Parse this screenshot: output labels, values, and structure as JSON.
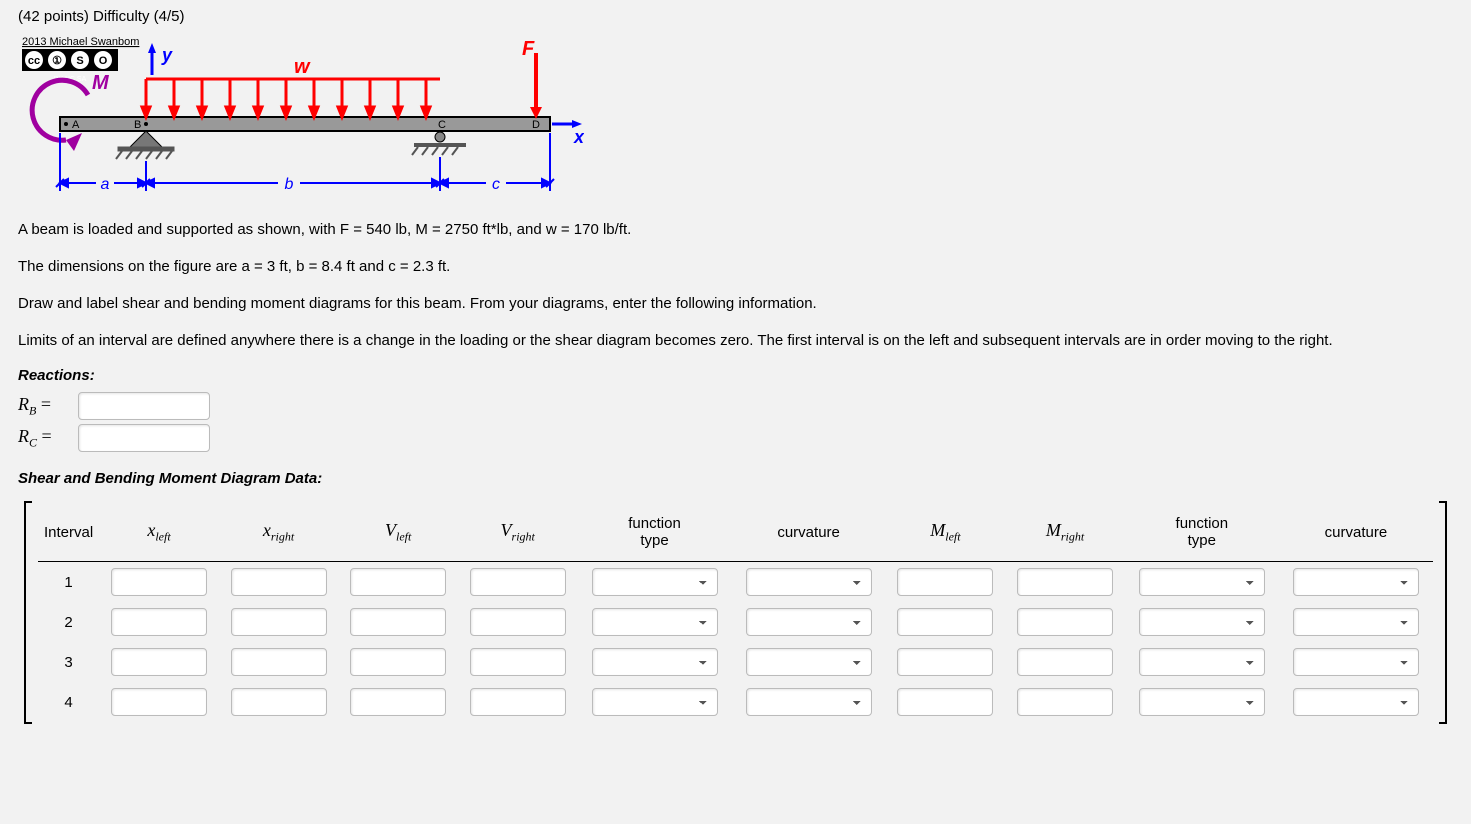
{
  "header": {
    "points": "(42 points)",
    "difficulty": "Difficulty (4/5)"
  },
  "figure": {
    "credit": "2013 Michael Swanbom",
    "cc_labels": [
      "cc",
      "①",
      "S",
      "O"
    ],
    "cc_sub": "BY   NC   SA",
    "labels": {
      "y": "y",
      "x": "x",
      "w": "w",
      "F": "F",
      "M": "M",
      "A": "A",
      "B": "B",
      "C": "C",
      "D": "D",
      "a": "a",
      "b": "b",
      "c": "c"
    },
    "colors": {
      "beam_fill": "#999999",
      "beam_stroke": "#000000",
      "load_red": "#ff0000",
      "dim_blue": "#0000ff",
      "moment_purple": "#a000a0",
      "support_gray": "#666666"
    }
  },
  "problem": {
    "p1": "A beam is loaded and supported as shown, with F = 540 lb, M = 2750 ft*lb, and w = 170 lb/ft.",
    "p2": "The dimensions on the figure are a = 3 ft, b = 8.4 ft and c = 2.3 ft.",
    "p3": "Draw and label shear and bending moment diagrams for this beam. From your diagrams, enter the following information.",
    "p4": "Limits of an interval are defined anywhere there is a change in the loading or the shear diagram becomes zero. The first interval is on the left and subsequent intervals are in order moving to the right."
  },
  "reactions": {
    "heading": "Reactions:",
    "rb_label_main": "R",
    "rb_label_sub": "B",
    "rc_label_main": "R",
    "rc_label_sub": "C",
    "eq": "="
  },
  "diagram_data": {
    "heading": "Shear and Bending Moment Diagram Data:",
    "columns": {
      "interval": "Interval",
      "xleft_m": "x",
      "xleft_s": "left",
      "xright_m": "x",
      "xright_s": "right",
      "vleft_m": "V",
      "vleft_s": "left",
      "vright_m": "V",
      "vright_s": "right",
      "ftype1": "function type",
      "curv1": "curvature",
      "mleft_m": "M",
      "mleft_s": "left",
      "mright_m": "M",
      "mright_s": "right",
      "ftype2": "function type",
      "curv2": "curvature"
    },
    "rows": [
      "1",
      "2",
      "3",
      "4"
    ]
  }
}
